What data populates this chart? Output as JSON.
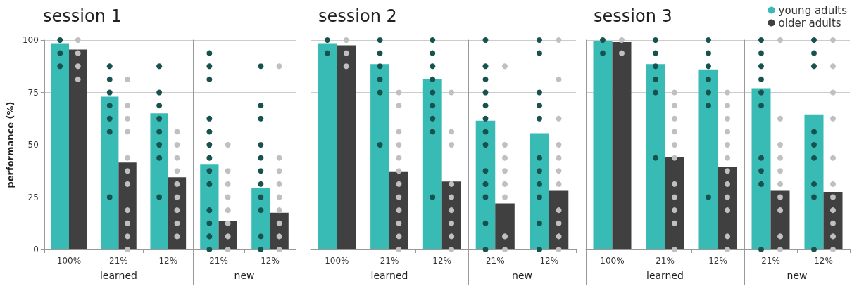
{
  "chart_data": [
    {
      "type": "bar",
      "title": "session 1",
      "ylabel": "performance (%)",
      "xlabel": "learned",
      "categories": [
        "100%",
        "21%",
        "12%"
      ],
      "series": [
        {
          "color": "#38bab5",
          "values": [
            98.5,
            73,
            65
          ]
        },
        {
          "color": "#404040",
          "values": [
            95.5,
            41.5,
            34.5
          ]
        },
        {
          "type": "scatter",
          "color": "#17524f",
          "x": [
            "100%",
            "100%",
            "100%",
            "21%",
            "21%",
            "21%",
            "21%",
            "21%",
            "21%",
            "21%",
            "12%",
            "12%",
            "12%",
            "12%",
            "12%",
            "12%",
            "12%",
            "12%"
          ],
          "values": [
            100,
            93.75,
            87.5,
            87.5,
            81.25,
            75,
            68.75,
            62.5,
            56.25,
            25,
            87.5,
            75,
            68.75,
            62.5,
            56.25,
            50,
            43.75,
            25
          ]
        },
        {
          "type": "scatter",
          "color": "#c0c0c0",
          "x": [
            "100%",
            "100%",
            "100%",
            "100%",
            "21%",
            "21%",
            "21%",
            "21%",
            "21%",
            "21%",
            "21%",
            "21%",
            "21%",
            "21%",
            "21%",
            "12%",
            "12%",
            "12%",
            "12%",
            "12%",
            "12%",
            "12%",
            "12%",
            "12%"
          ],
          "values": [
            100,
            93.75,
            87.5,
            81.25,
            81.25,
            68.75,
            62.5,
            56.25,
            43.75,
            37.5,
            31.25,
            18.75,
            12.5,
            6.25,
            0,
            56.25,
            50,
            43.75,
            37.5,
            31.25,
            25,
            18.75,
            12.5,
            6.25
          ]
        }
      ],
      "ylim": [
        0,
        100
      ],
      "yticks": [
        0,
        25,
        50,
        75,
        100
      ],
      "grid": "y",
      "marker": "circle"
    },
    {
      "type": "bar",
      "xlabel": "new",
      "categories": [
        "21%",
        "12%"
      ],
      "series": [
        {
          "color": "#38bab5",
          "values": [
            40.5,
            29.5
          ]
        },
        {
          "color": "#404040",
          "values": [
            13.5,
            17.5
          ]
        },
        {
          "type": "scatter",
          "color": "#17524f",
          "x": [
            "21%",
            "21%",
            "21%",
            "21%",
            "21%",
            "21%",
            "21%",
            "21%",
            "21%",
            "21%",
            "21%",
            "21%",
            "21%",
            "12%",
            "12%",
            "12%",
            "12%",
            "12%",
            "12%",
            "12%",
            "12%",
            "12%",
            "12%",
            "12%"
          ],
          "values": [
            93.75,
            87.5,
            81.25,
            62.5,
            56.25,
            50,
            43.75,
            37.5,
            31.25,
            18.75,
            12.5,
            6.25,
            0,
            87.5,
            68.75,
            62.5,
            50,
            43.75,
            37.5,
            31.25,
            25,
            18.75,
            6.25,
            0
          ]
        },
        {
          "type": "scatter",
          "color": "#c0c0c0",
          "x": [
            "21%",
            "21%",
            "21%",
            "21%",
            "21%",
            "21%",
            "21%",
            "21%",
            "12%",
            "12%",
            "12%",
            "12%",
            "12%",
            "12%",
            "12%",
            "12%",
            "12%"
          ],
          "values": [
            50,
            37.5,
            31.25,
            25,
            18.75,
            12.5,
            6.25,
            0,
            87.5,
            43.75,
            37.5,
            31.25,
            25,
            18.75,
            12.5,
            6.25,
            0
          ]
        }
      ],
      "ylim": [
        0,
        100
      ],
      "yticks": [
        0,
        25,
        50,
        75,
        100
      ],
      "grid": "y",
      "marker": "circle",
      "tick_labels": "x"
    },
    {
      "type": "bar",
      "title": "session 2",
      "xlabel": "learned",
      "categories": [
        "100%",
        "21%",
        "12%"
      ],
      "series": [
        {
          "color": "#38bab5",
          "values": [
            98.5,
            88.5,
            81.5
          ]
        },
        {
          "color": "#404040",
          "values": [
            97.5,
            37,
            32.5
          ]
        },
        {
          "type": "scatter",
          "color": "#17524f",
          "x": [
            "100%",
            "100%",
            "21%",
            "21%",
            "21%",
            "21%",
            "21%",
            "21%",
            "12%",
            "12%",
            "12%",
            "12%",
            "12%",
            "12%",
            "12%",
            "12%",
            "12%"
          ],
          "values": [
            100,
            93.75,
            100,
            93.75,
            87.5,
            81.25,
            75,
            50,
            100,
            93.75,
            87.5,
            81.25,
            75,
            68.75,
            62.5,
            56.25,
            25
          ]
        },
        {
          "type": "scatter",
          "color": "#c0c0c0",
          "x": [
            "100%",
            "100%",
            "100%",
            "21%",
            "21%",
            "21%",
            "21%",
            "21%",
            "21%",
            "21%",
            "21%",
            "21%",
            "21%",
            "21%",
            "21%",
            "12%",
            "12%",
            "12%",
            "12%",
            "12%",
            "12%",
            "12%",
            "12%",
            "12%"
          ],
          "values": [
            100,
            93.75,
            87.5,
            75,
            68.75,
            56.25,
            50,
            43.75,
            37.5,
            31.25,
            25,
            18.75,
            12.5,
            6.25,
            0,
            75,
            56.25,
            50,
            31.25,
            25,
            18.75,
            12.5,
            6.25,
            0
          ]
        }
      ],
      "ylim": [
        0,
        100
      ],
      "yticks": [
        0,
        25,
        50,
        75,
        100
      ],
      "grid": "y",
      "marker": "circle",
      "tick_labels": "x"
    },
    {
      "type": "bar",
      "xlabel": "new",
      "categories": [
        "21%",
        "12%"
      ],
      "series": [
        {
          "color": "#38bab5",
          "values": [
            61.5,
            55.5
          ]
        },
        {
          "color": "#404040",
          "values": [
            22,
            28
          ]
        },
        {
          "type": "scatter",
          "color": "#17524f",
          "x": [
            "21%",
            "21%",
            "21%",
            "21%",
            "21%",
            "21%",
            "21%",
            "21%",
            "21%",
            "21%",
            "21%",
            "21%",
            "21%",
            "12%",
            "12%",
            "12%",
            "12%",
            "12%",
            "12%",
            "12%",
            "12%",
            "12%",
            "12%",
            "12%"
          ],
          "values": [
            100,
            87.5,
            81.25,
            75,
            68.75,
            62.5,
            56.25,
            50,
            37.5,
            31.25,
            25,
            12.5,
            0,
            100,
            93.75,
            75,
            68.75,
            62.5,
            43.75,
            37.5,
            31.25,
            25,
            12.5,
            0
          ]
        },
        {
          "type": "scatter",
          "color": "#c0c0c0",
          "x": [
            "21%",
            "21%",
            "21%",
            "21%",
            "21%",
            "21%",
            "21%",
            "21%",
            "12%",
            "12%",
            "12%",
            "12%",
            "12%",
            "12%",
            "12%",
            "12%",
            "12%",
            "12%",
            "12%"
          ],
          "values": [
            87.5,
            50,
            43.75,
            37.5,
            31.25,
            25,
            6.25,
            0,
            100,
            81.25,
            62.5,
            50,
            43.75,
            37.5,
            31.25,
            18.75,
            12.5,
            6.25,
            0
          ]
        }
      ],
      "ylim": [
        0,
        100
      ],
      "yticks": [
        0,
        25,
        50,
        75,
        100
      ],
      "grid": "y",
      "marker": "circle",
      "tick_labels": "x"
    },
    {
      "type": "bar",
      "title": "session 3",
      "xlabel": "learned",
      "categories": [
        "100%",
        "21%",
        "12%"
      ],
      "series": [
        {
          "color": "#38bab5",
          "values": [
            99.5,
            88.5,
            86
          ]
        },
        {
          "color": "#404040",
          "values": [
            99,
            44,
            39.5
          ]
        },
        {
          "type": "scatter",
          "color": "#17524f",
          "x": [
            "100%",
            "100%",
            "21%",
            "21%",
            "21%",
            "21%",
            "21%",
            "21%",
            "12%",
            "12%",
            "12%",
            "12%",
            "12%",
            "12%",
            "12%"
          ],
          "values": [
            100,
            93.75,
            100,
            93.75,
            87.5,
            81.25,
            75,
            43.75,
            100,
            93.75,
            87.5,
            81.25,
            75,
            68.75,
            25
          ]
        },
        {
          "type": "scatter",
          "color": "#c0c0c0",
          "x": [
            "100%",
            "100%",
            "21%",
            "21%",
            "21%",
            "21%",
            "21%",
            "21%",
            "21%",
            "21%",
            "21%",
            "21%",
            "21%",
            "12%",
            "12%",
            "12%",
            "12%",
            "12%",
            "12%",
            "12%",
            "12%",
            "12%",
            "12%",
            "12%",
            "12%"
          ],
          "values": [
            100,
            93.75,
            75,
            68.75,
            62.5,
            56.25,
            50,
            43.75,
            31.25,
            25,
            18.75,
            12.5,
            0,
            75,
            68.75,
            62.5,
            56.25,
            50,
            43.75,
            37.5,
            31.25,
            25,
            18.75,
            6.25,
            0
          ]
        }
      ],
      "ylim": [
        0,
        100
      ],
      "yticks": [
        0,
        25,
        50,
        75,
        100
      ],
      "grid": "y",
      "marker": "circle",
      "tick_labels": "x"
    },
    {
      "type": "bar",
      "xlabel": "new",
      "categories": [
        "21%",
        "12%"
      ],
      "series": [
        {
          "name": "young adults",
          "color": "#38bab5",
          "values": [
            77,
            64.5
          ]
        },
        {
          "name": "older adults",
          "color": "#404040",
          "values": [
            28,
            27.5
          ]
        },
        {
          "type": "scatter",
          "color": "#17524f",
          "x": [
            "21%",
            "21%",
            "21%",
            "21%",
            "21%",
            "21%",
            "21%",
            "21%",
            "21%",
            "21%",
            "12%",
            "12%",
            "12%",
            "12%",
            "12%",
            "12%",
            "12%",
            "12%",
            "12%"
          ],
          "values": [
            100,
            93.75,
            87.5,
            81.25,
            75,
            68.75,
            43.75,
            37.5,
            31.25,
            0,
            100,
            93.75,
            87.5,
            56.25,
            50,
            43.75,
            31.25,
            25,
            0
          ]
        },
        {
          "type": "scatter",
          "color": "#c0c0c0",
          "x": [
            "21%",
            "21%",
            "21%",
            "21%",
            "21%",
            "21%",
            "21%",
            "21%",
            "21%",
            "21%",
            "12%",
            "12%",
            "12%",
            "12%",
            "12%",
            "12%",
            "12%",
            "12%",
            "12%",
            "12%",
            "12%"
          ],
          "values": [
            100,
            62.5,
            50,
            43.75,
            37.5,
            31.25,
            25,
            18.75,
            6.25,
            0,
            100,
            87.5,
            75,
            62.5,
            43.75,
            31.25,
            25,
            18.75,
            12.5,
            6.25,
            0
          ]
        }
      ],
      "ylim": [
        0,
        100
      ],
      "yticks": [
        0,
        25,
        50,
        75,
        100
      ],
      "grid": "y",
      "legend": "top right",
      "marker": "circle",
      "tick_labels": "x"
    }
  ]
}
